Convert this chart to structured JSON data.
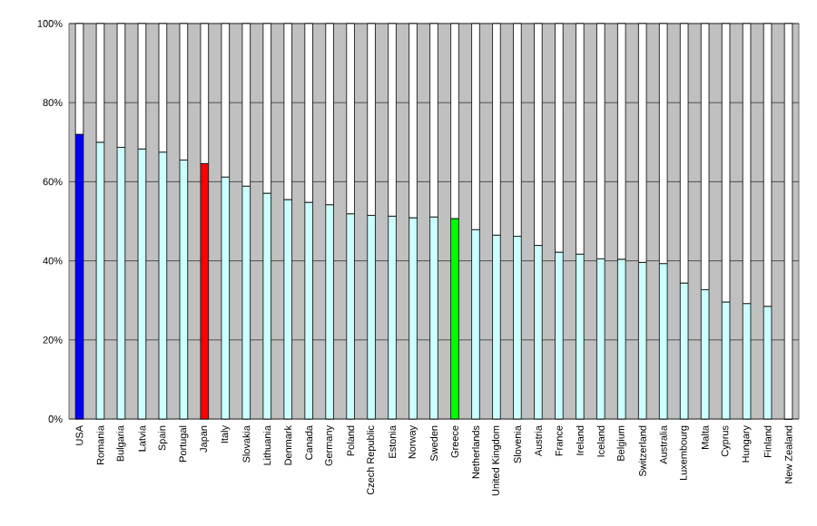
{
  "chart_data": {
    "type": "bar",
    "stacked": true,
    "categories": [
      "USA",
      "Romania",
      "Bulgaria",
      "Latvia",
      "Spain",
      "Portugal",
      "Japan",
      "Italy",
      "Slovakia",
      "Lithuania",
      "Denmark",
      "Canada",
      "Germany",
      "Poland",
      "Czech Republic",
      "Estonia",
      "Norway",
      "Sweden",
      "Greece",
      "Netherlands",
      "United Kingdom",
      "Slovenia",
      "Austria",
      "France",
      "Ireland",
      "Iceland",
      "Belgium",
      "Switzerland",
      "Australia",
      "Luxembourg",
      "Malta",
      "Cyprus",
      "Hungary",
      "Finland",
      "New Zealand"
    ],
    "series": [
      {
        "colors": [
          "#0000ff",
          "#ccffff",
          "#ccffff",
          "#ccffff",
          "#ccffff",
          "#ccffff",
          "#ff0000",
          "#ccffff",
          "#ccffff",
          "#ccffff",
          "#ccffff",
          "#ccffff",
          "#ccffff",
          "#ccffff",
          "#ccffff",
          "#ccffff",
          "#ccffff",
          "#ccffff",
          "#00ff00",
          "#ccffff",
          "#ccffff",
          "#ccffff",
          "#ccffff",
          "#ccffff",
          "#ccffff",
          "#ccffff",
          "#ccffff",
          "#ccffff",
          "#ccffff",
          "#ccffff",
          "#ccffff",
          "#ccffff",
          "#ccffff",
          "#ccffff",
          "#ccffff"
        ],
        "values": [
          72,
          70,
          68.7,
          68.3,
          67.5,
          65.5,
          64.6,
          61.2,
          58.9,
          57.1,
          55.5,
          54.8,
          54.2,
          51.9,
          51.5,
          51.3,
          50.9,
          51.1,
          50.7,
          47.9,
          46.5,
          46.2,
          43.9,
          42.2,
          41.7,
          40.5,
          40.4,
          39.6,
          39.3,
          34.4,
          32.7,
          29.6,
          29.2,
          28.5,
          0
        ]
      },
      {
        "color": "#ffffff",
        "values": [
          28,
          30,
          31.3,
          31.7,
          32.5,
          34.5,
          35.4,
          38.8,
          41.1,
          42.9,
          44.5,
          45.2,
          45.8,
          48.1,
          48.5,
          48.7,
          49.1,
          48.9,
          49.3,
          52.1,
          53.5,
          53.8,
          56.1,
          57.8,
          58.3,
          59.5,
          59.6,
          60.4,
          60.7,
          65.6,
          67.3,
          70.4,
          70.8,
          71.5,
          100
        ]
      }
    ],
    "ylim": [
      0,
      100
    ],
    "yticks": [
      {
        "value": 0,
        "label": "0%"
      },
      {
        "value": 20,
        "label": "20%"
      },
      {
        "value": 40,
        "label": "40%"
      },
      {
        "value": 60,
        "label": "60%"
      },
      {
        "value": 80,
        "label": "80%"
      },
      {
        "value": 100,
        "label": "100%"
      }
    ],
    "grid": "y"
  }
}
